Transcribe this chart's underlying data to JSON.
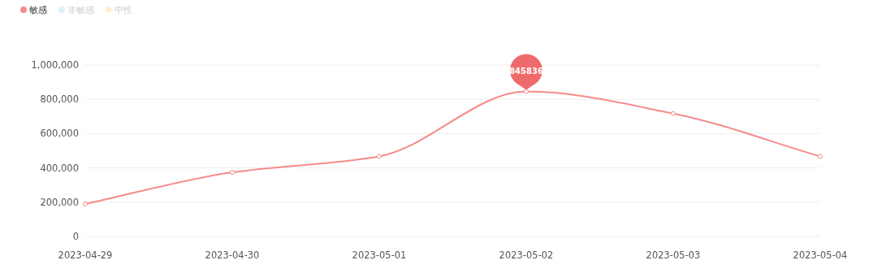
{
  "chart_data": {
    "type": "line",
    "categories": [
      "2023-04-29",
      "2023-04-30",
      "2023-05-01",
      "2023-05-02",
      "2023-05-03",
      "2023-05-04"
    ],
    "series": [
      {
        "name": "敏感",
        "color": "#f78a8a",
        "values": [
          190000,
          374000,
          467000,
          845836,
          717000,
          467000
        ],
        "value_labels": [
          null,
          null,
          null,
          "845836",
          null,
          null
        ]
      },
      {
        "name": "非敏感",
        "color": "#dff0f8",
        "values": [
          null,
          null,
          null,
          null,
          null,
          null
        ]
      },
      {
        "name": "中性",
        "color": "#fdf0d5",
        "values": [
          null,
          null,
          null,
          null,
          null,
          null
        ]
      }
    ],
    "ylim": [
      0,
      1000000
    ],
    "yticks": [
      0,
      {
        "value": 200000,
        "label": "200,000"
      },
      {
        "value": 400000,
        "label": "400,000"
      },
      {
        "value": 600000,
        "label": "600,000"
      },
      {
        "value": 800000,
        "label": "800,000"
      },
      {
        "value": 1000000,
        "label": "1,000,000"
      }
    ],
    "grid": "y",
    "legend": "top left",
    "marker": "circle"
  }
}
